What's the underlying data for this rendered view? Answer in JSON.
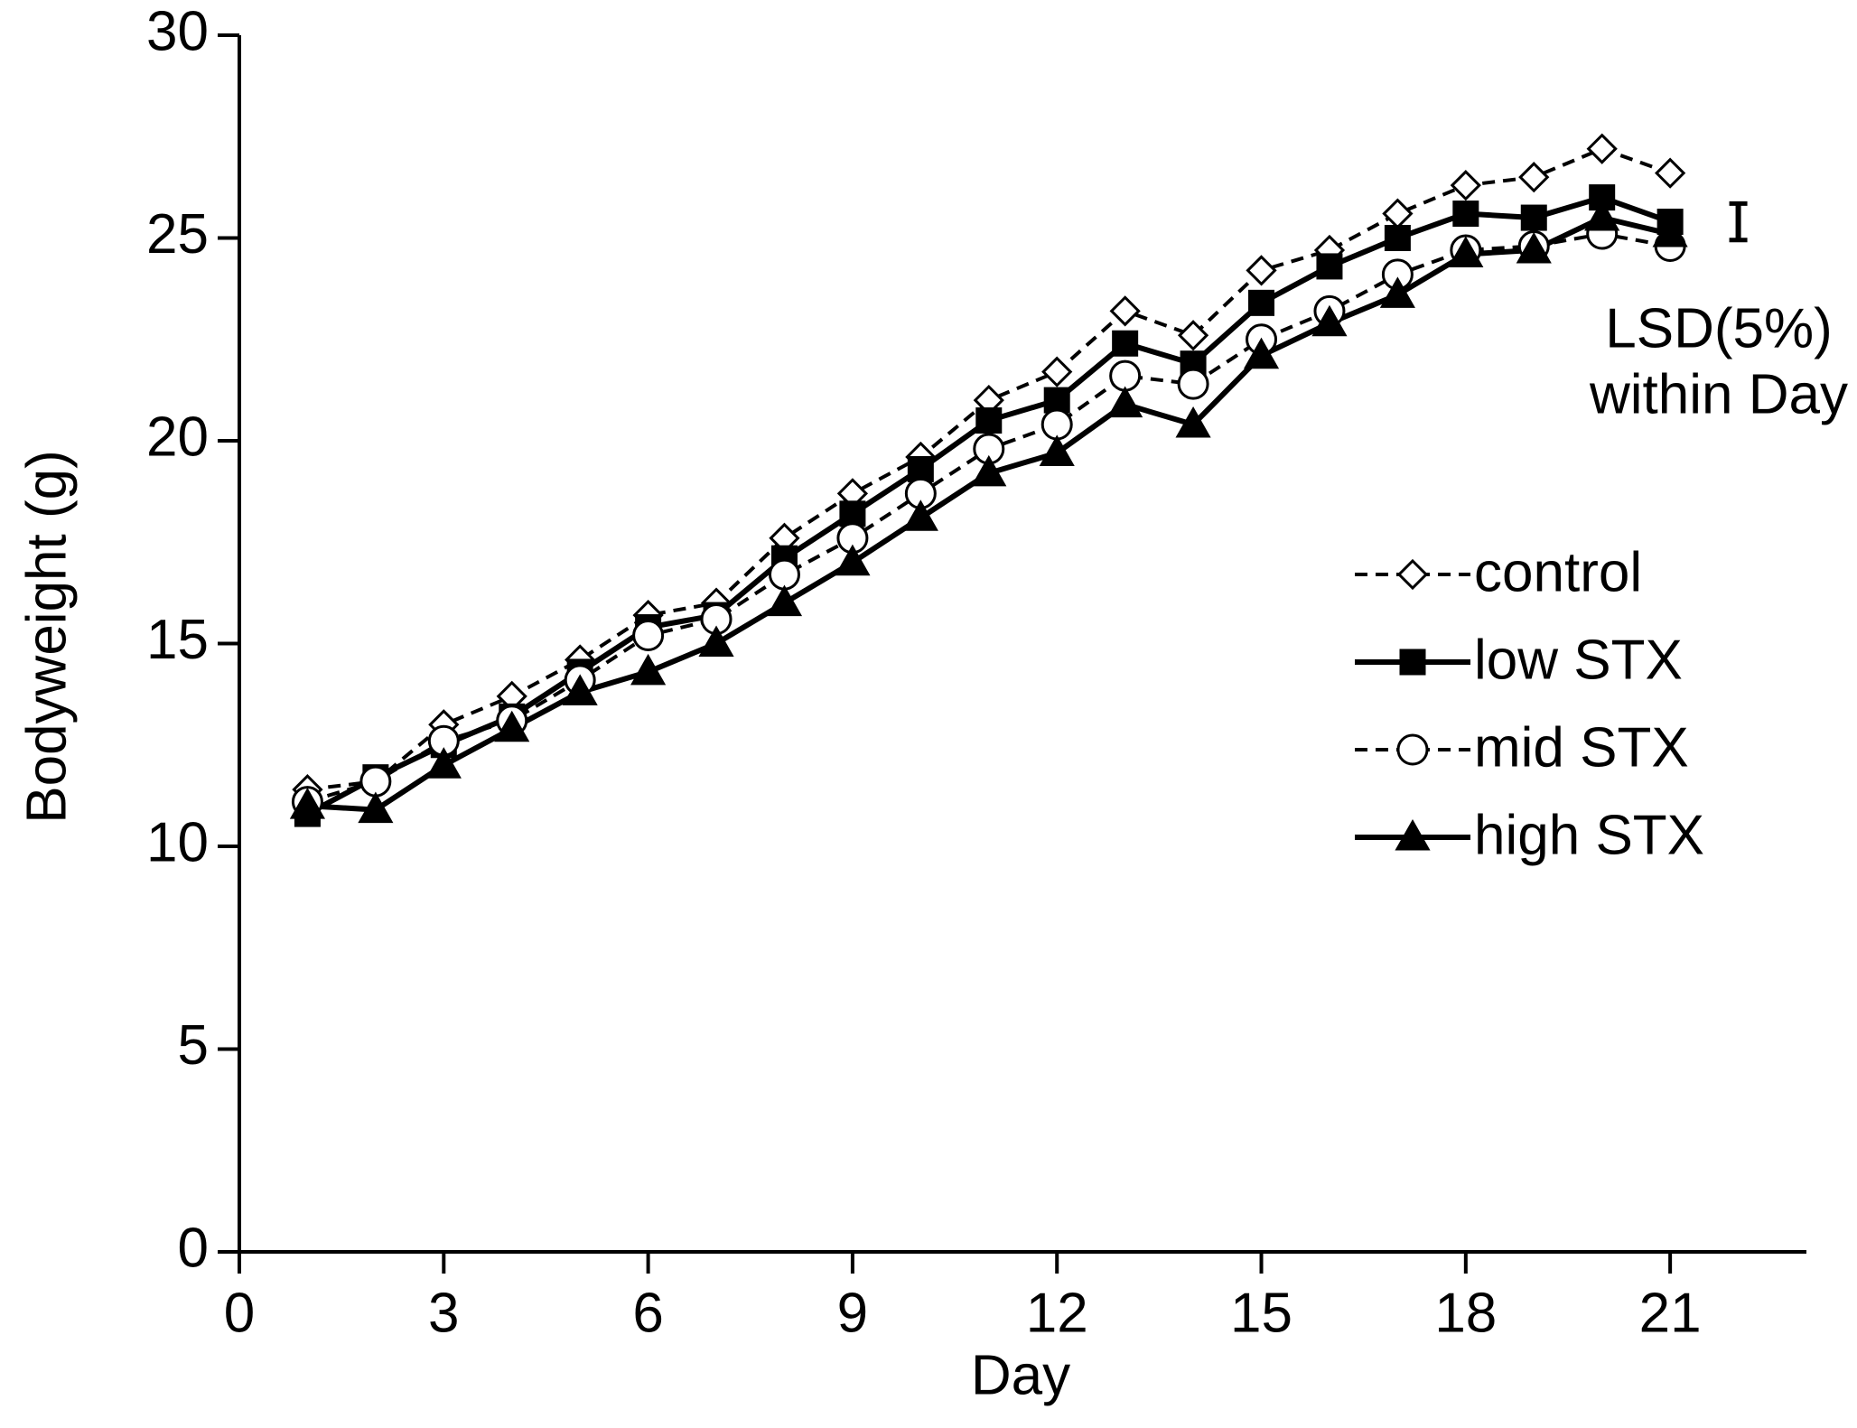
{
  "chart_data": {
    "type": "line",
    "x_label": "Day",
    "y_label": "Bodyweight (g)",
    "x": [
      1,
      2,
      3,
      4,
      5,
      6,
      7,
      8,
      9,
      10,
      11,
      12,
      13,
      14,
      15,
      16,
      17,
      18,
      19,
      20,
      21
    ],
    "series": [
      {
        "name": "control",
        "color": "#000000",
        "dashed": true,
        "marker": "diamond",
        "filled": false,
        "values": [
          11.4,
          11.6,
          13.0,
          13.7,
          14.6,
          15.7,
          16.0,
          17.6,
          18.7,
          19.6,
          21.0,
          21.7,
          23.2,
          22.6,
          24.2,
          24.7,
          25.6,
          26.3,
          26.5,
          27.2,
          26.6
        ]
      },
      {
        "name": "low STX",
        "color": "#000000",
        "dashed": false,
        "marker": "square",
        "filled": true,
        "values": [
          10.8,
          11.7,
          12.5,
          13.2,
          14.3,
          15.4,
          15.7,
          17.1,
          18.2,
          19.3,
          20.5,
          21.0,
          22.4,
          21.9,
          23.4,
          24.3,
          25.0,
          25.6,
          25.5,
          26.0,
          25.4
        ]
      },
      {
        "name": "mid STX",
        "color": "#000000",
        "dashed": true,
        "marker": "circle",
        "filled": false,
        "values": [
          11.1,
          11.6,
          12.6,
          13.1,
          14.1,
          15.2,
          15.6,
          16.7,
          17.6,
          18.7,
          19.8,
          20.4,
          21.6,
          21.4,
          22.5,
          23.2,
          24.1,
          24.7,
          24.8,
          25.1,
          24.8
        ]
      },
      {
        "name": "high STX",
        "color": "#000000",
        "dashed": false,
        "marker": "triangle",
        "filled": true,
        "values": [
          11.0,
          10.9,
          12.0,
          12.9,
          13.8,
          14.3,
          15.0,
          16.0,
          17.0,
          18.1,
          19.2,
          19.7,
          20.9,
          20.4,
          22.1,
          22.9,
          23.6,
          24.6,
          24.7,
          25.5,
          25.1
        ]
      }
    ],
    "lsd": {
      "x": 22,
      "y": 25.4,
      "error": 0.45,
      "label": [
        "LSD(5%)",
        "within Day"
      ]
    },
    "xlim": [
      0,
      23
    ],
    "ylim": [
      0,
      30
    ],
    "xticks": [
      0,
      3,
      6,
      9,
      12,
      15,
      18,
      21
    ],
    "yticks": [
      0,
      5,
      10,
      15,
      20,
      25,
      30
    ],
    "grid": false
  }
}
